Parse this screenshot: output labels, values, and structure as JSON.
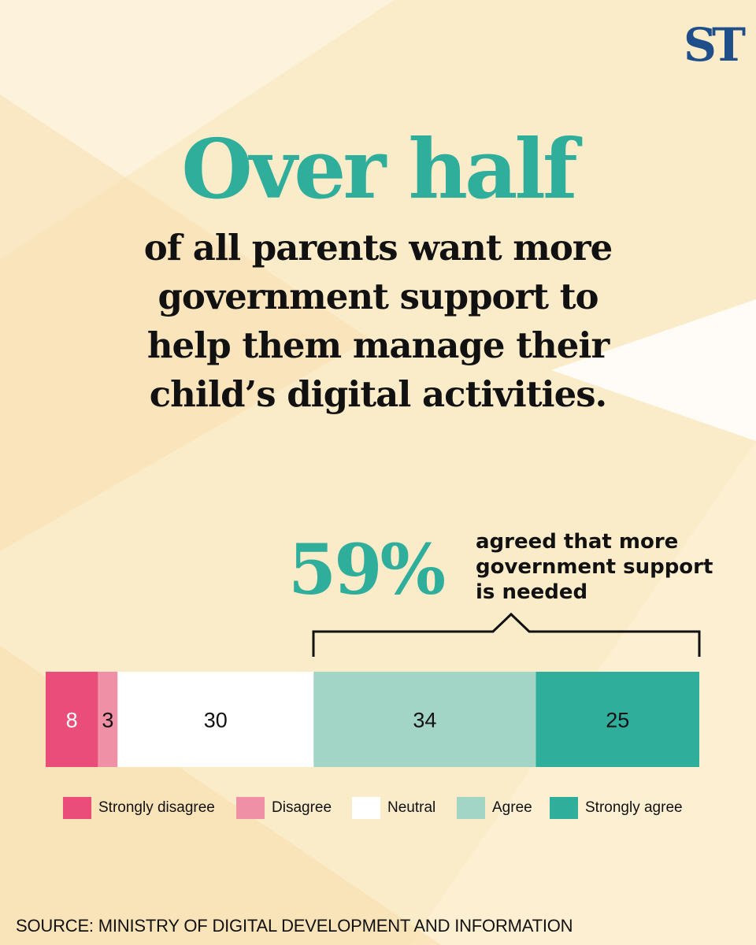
{
  "brand": {
    "logo_text": "ST",
    "logo_color": "#1f4f8a"
  },
  "headline": "Over half",
  "subhead": "of all parents want more government support to help them manage their child’s digital activities.",
  "highlight": {
    "value": "59%",
    "caption": "agreed that more government support is needed"
  },
  "chart_data": {
    "type": "bar",
    "stacked": true,
    "orientation": "horizontal",
    "categories": [
      "Strongly disagree",
      "Disagree",
      "Neutral",
      "Agree",
      "Strongly agree"
    ],
    "values": [
      8,
      3,
      30,
      34,
      25
    ],
    "labels": [
      "8",
      "3",
      "30",
      "34",
      "25"
    ],
    "colors": [
      "#ea4d79",
      "#f090a6",
      "#ffffff",
      "#a3d5c7",
      "#2fae9c"
    ],
    "xlim": [
      0,
      100
    ],
    "legend_position": "bottom",
    "grid": false
  },
  "source": "SOURCE: MINISTRY OF DIGITAL DEVELOPMENT AND INFORMATION",
  "colors": {
    "accent": "#2fae9c",
    "background": "#fbecc9",
    "background_light": "#fdf3dc",
    "background_dark": "#f8e0b0"
  }
}
